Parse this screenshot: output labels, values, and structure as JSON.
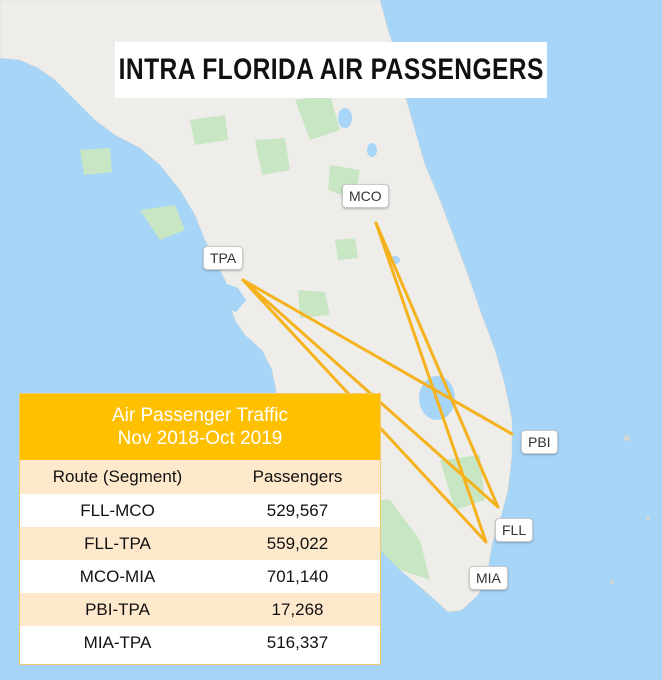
{
  "title": "INTRA FLORIDA AIR PASSENGERS",
  "airports": [
    {
      "code": "MCO",
      "name": "airport-label-mco"
    },
    {
      "code": "TPA",
      "name": "airport-label-tpa"
    },
    {
      "code": "PBI",
      "name": "airport-label-pbi"
    },
    {
      "code": "FLL",
      "name": "airport-label-fll"
    },
    {
      "code": "MIA",
      "name": "airport-label-mia"
    }
  ],
  "routes": [
    "FLL-MCO",
    "FLL-TPA",
    "MCO-MIA",
    "PBI-TPA",
    "MIA-TPA"
  ],
  "table": {
    "title_line1": "Air Passenger Traffic",
    "title_line2": "Nov 2018-Oct 2019",
    "col_route": "Route (Segment)",
    "col_passengers": "Passengers",
    "rows": [
      {
        "route": "FLL-MCO",
        "passengers": "529,567"
      },
      {
        "route": "FLL-TPA",
        "passengers": "559,022"
      },
      {
        "route": "MCO-MIA",
        "passengers": "701,140"
      },
      {
        "route": "PBI-TPA",
        "passengers": "17,268"
      },
      {
        "route": "MIA-TPA",
        "passengers": "516,337"
      }
    ]
  },
  "colors": {
    "water": "#a6d5f7",
    "land": "#eeede9",
    "park": "#c9e6c4",
    "route_line": "#f5b21c",
    "table_header": "#ffc000",
    "table_stripe": "#ffe9cc"
  }
}
